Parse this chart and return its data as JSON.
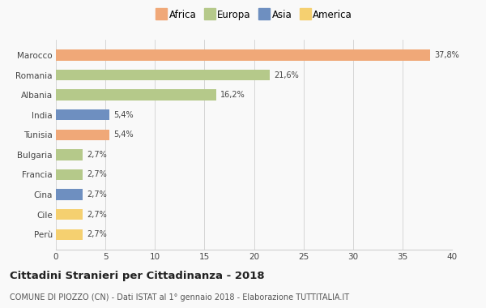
{
  "categories": [
    "Marocco",
    "Romania",
    "Albania",
    "India",
    "Tunisia",
    "Bulgaria",
    "Francia",
    "Cina",
    "Cile",
    "Perù"
  ],
  "values": [
    37.8,
    21.6,
    16.2,
    5.4,
    5.4,
    2.7,
    2.7,
    2.7,
    2.7,
    2.7
  ],
  "labels": [
    "37,8%",
    "21,6%",
    "16,2%",
    "5,4%",
    "5,4%",
    "2,7%",
    "2,7%",
    "2,7%",
    "2,7%",
    "2,7%"
  ],
  "colors": [
    "#f0a878",
    "#b5c98a",
    "#b5c98a",
    "#6e8fc0",
    "#f0a878",
    "#b5c98a",
    "#b5c98a",
    "#6e8fc0",
    "#f5d070",
    "#f5d070"
  ],
  "legend_labels": [
    "Africa",
    "Europa",
    "Asia",
    "America"
  ],
  "legend_colors": [
    "#f0a878",
    "#b5c98a",
    "#6e8fc0",
    "#f5d070"
  ],
  "title": "Cittadini Stranieri per Cittadinanza - 2018",
  "subtitle": "COMUNE DI PIOZZO (CN) - Dati ISTAT al 1° gennaio 2018 - Elaborazione TUTTITALIA.IT",
  "xlim": [
    0,
    40
  ],
  "xticks": [
    0,
    5,
    10,
    15,
    20,
    25,
    30,
    35,
    40
  ],
  "bg_color": "#f9f9f9",
  "grid_color": "#d0d0d0"
}
